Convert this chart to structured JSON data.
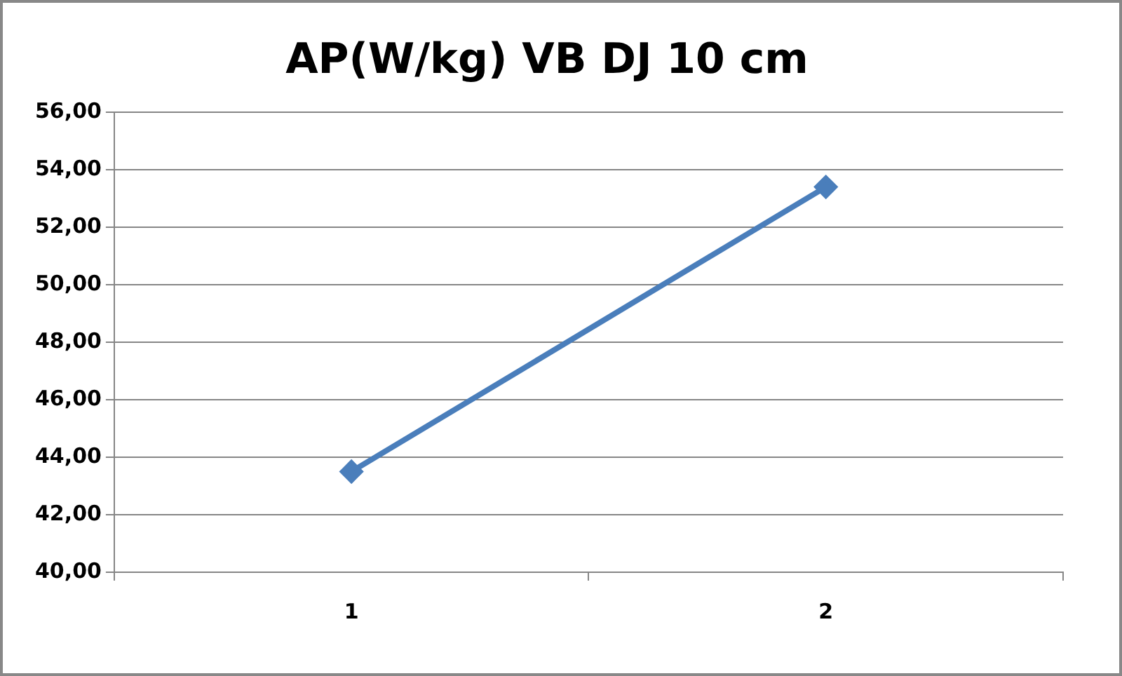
{
  "chart_data": {
    "type": "line",
    "title": "AP(W/kg) VB DJ 10 cm",
    "categories": [
      "1",
      "2"
    ],
    "series": [
      {
        "color": "#4a7ebb",
        "values": [
          43.5,
          53.4
        ]
      }
    ],
    "ylim": [
      40,
      56
    ],
    "yticks": [
      {
        "value": 40,
        "label": "40,00"
      },
      {
        "value": 42,
        "label": "42,00"
      },
      {
        "value": 44,
        "label": "44,00"
      },
      {
        "value": 46,
        "label": "46,00"
      },
      {
        "value": 48,
        "label": "48,00"
      },
      {
        "value": 50,
        "label": "50,00"
      },
      {
        "value": 52,
        "label": "52,00"
      },
      {
        "value": 54,
        "label": "54,00"
      },
      {
        "value": 56,
        "label": "56,00"
      }
    ],
    "grid": "y",
    "legend": false,
    "marker": "diamond",
    "line_style": "solid"
  }
}
